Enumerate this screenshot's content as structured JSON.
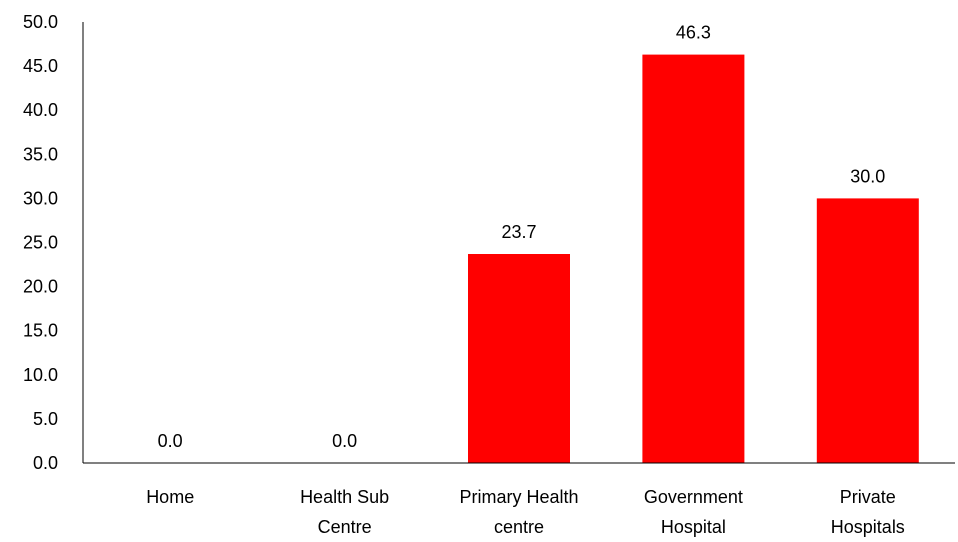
{
  "chart_data": {
    "type": "bar",
    "categories": [
      [
        "Home"
      ],
      [
        "Health Sub",
        "Centre"
      ],
      [
        "Primary Health",
        "centre"
      ],
      [
        "Government",
        "Hospital"
      ],
      [
        "Private",
        "Hospitals"
      ]
    ],
    "values": [
      0.0,
      0.0,
      23.7,
      46.3,
      30.0
    ],
    "ylim": [
      0,
      50
    ],
    "yticks": [
      0,
      5,
      10,
      15,
      20,
      25,
      30,
      35,
      40,
      45,
      50
    ],
    "ytick_labels": [
      "0.0",
      "5.0",
      "10.0",
      "15.0",
      "20.0",
      "25.0",
      "30.0",
      "35.0",
      "40.0",
      "45.0",
      "50.0"
    ],
    "data_labels": [
      "0.0",
      "0.0",
      "23.7",
      "46.3",
      "30.0"
    ],
    "title": "",
    "xlabel": "",
    "ylabel": "",
    "grid": false,
    "legend": "none",
    "bar_color": "#ff0000",
    "axis_color": "#000000"
  }
}
